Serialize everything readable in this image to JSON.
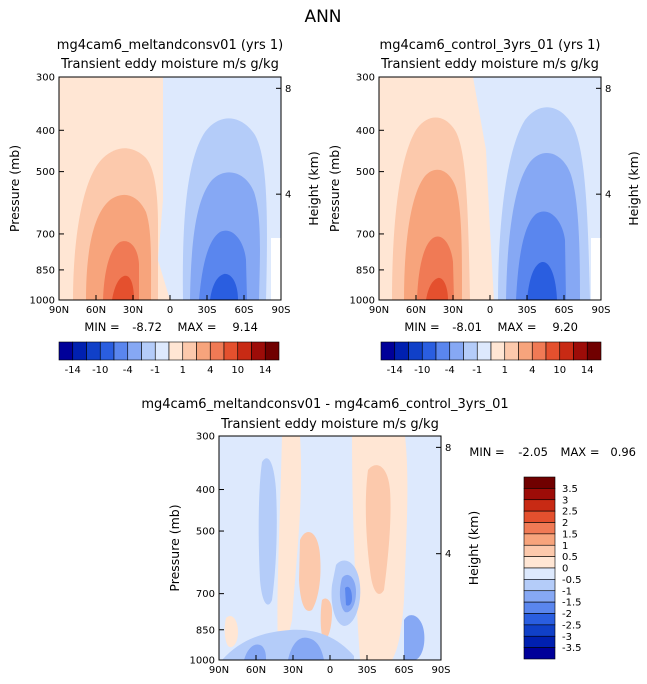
{
  "figure": {
    "title": "ANN",
    "xticks": [
      "90N",
      "60N",
      "30N",
      "0",
      "30S",
      "60S",
      "90S"
    ],
    "pressure_label": "Pressure (mb)",
    "height_label": "Height (km)",
    "pressure_ticks": [
      "300",
      "400",
      "500",
      "700",
      "850",
      "1000"
    ],
    "height_ticks": [
      "8",
      "4"
    ]
  },
  "colors": {
    "full": [
      "#000099",
      "#0020b0",
      "#1040c8",
      "#2a5ee0",
      "#5a86ee",
      "#86a8f4",
      "#b4ccf9",
      "#dde9fd",
      "#ffe6d4",
      "#fcc9ac",
      "#f7a47c",
      "#f07a55",
      "#e4502e",
      "#c82a14",
      "#9d0c08",
      "#700000"
    ],
    "diff": [
      "#000099",
      "#0020b0",
      "#1040c8",
      "#2a5ee0",
      "#5a86ee",
      "#86a8f4",
      "#b4ccf9",
      "#dde9fd",
      "#ffe6d4",
      "#fcc9ac",
      "#f7a47c",
      "#f07a55",
      "#e4502e",
      "#c82a14",
      "#9d0c08",
      "#700000"
    ]
  },
  "chart_data": [
    {
      "type": "heatmap",
      "title": "mg4cam6_meltandconsv01 (yrs 1)",
      "subtitle": "Transient eddy moisture m/s g/kg",
      "x": [
        "90N",
        "60N",
        "30N",
        "0",
        "30S",
        "60S",
        "90S"
      ],
      "y_pressure_mb": [
        300,
        400,
        500,
        700,
        850,
        1000
      ],
      "y_height_km": [
        8,
        4
      ],
      "min_label": "MIN =",
      "min": "-8.72",
      "max_label": "MAX =",
      "max": "9.14",
      "features": [
        {
          "lat": 40,
          "p": 950,
          "value": 8
        },
        {
          "lat": -40,
          "p": 950,
          "value": -8
        }
      ]
    },
    {
      "type": "heatmap",
      "title": "mg4cam6_control_3yrs_01 (yrs 1)",
      "subtitle": "Transient eddy moisture m/s g/kg",
      "x": [
        "90N",
        "60N",
        "30N",
        "0",
        "30S",
        "60S",
        "90S"
      ],
      "y_pressure_mb": [
        300,
        400,
        500,
        700,
        850,
        1000
      ],
      "y_height_km": [
        8,
        4
      ],
      "min_label": "MIN =",
      "min": "-8.01",
      "max_label": "MAX =",
      "max": "9.20",
      "features": [
        {
          "lat": 40,
          "p": 950,
          "value": 8
        },
        {
          "lat": -40,
          "p": 950,
          "value": -8
        }
      ]
    },
    {
      "type": "colorbar",
      "labels": [
        "-14",
        "-10",
        "-4",
        "-1",
        "1",
        "4",
        "10",
        "14"
      ],
      "levels": [
        -14,
        -12,
        -10,
        -8,
        -4,
        -2,
        -1,
        0,
        1,
        2,
        4,
        8,
        10,
        12,
        14
      ]
    },
    {
      "type": "heatmap",
      "title": "mg4cam6_meltandconsv01 - mg4cam6_control_3yrs_01",
      "subtitle": "Transient eddy moisture m/s g/kg",
      "x": [
        "90N",
        "60N",
        "30N",
        "0",
        "30S",
        "60S",
        "90S"
      ],
      "y_pressure_mb": [
        300,
        400,
        500,
        700,
        850,
        1000
      ],
      "y_height_km": [
        8,
        4
      ],
      "min_label": "MIN =",
      "min": "-2.05",
      "max_label": "MAX =",
      "max": "0.96"
    },
    {
      "type": "colorbar",
      "labels": [
        "3.5",
        "3",
        "2.5",
        "2",
        "1.5",
        "1",
        "0.5",
        "0",
        "-0.5",
        "-1",
        "-1.5",
        "-2",
        "-2.5",
        "-3",
        "-3.5"
      ],
      "levels": [
        -3.5,
        -3,
        -2.5,
        -2,
        -1.5,
        -1,
        -0.5,
        0,
        0.5,
        1,
        1.5,
        2,
        2.5,
        3,
        3.5
      ]
    }
  ]
}
